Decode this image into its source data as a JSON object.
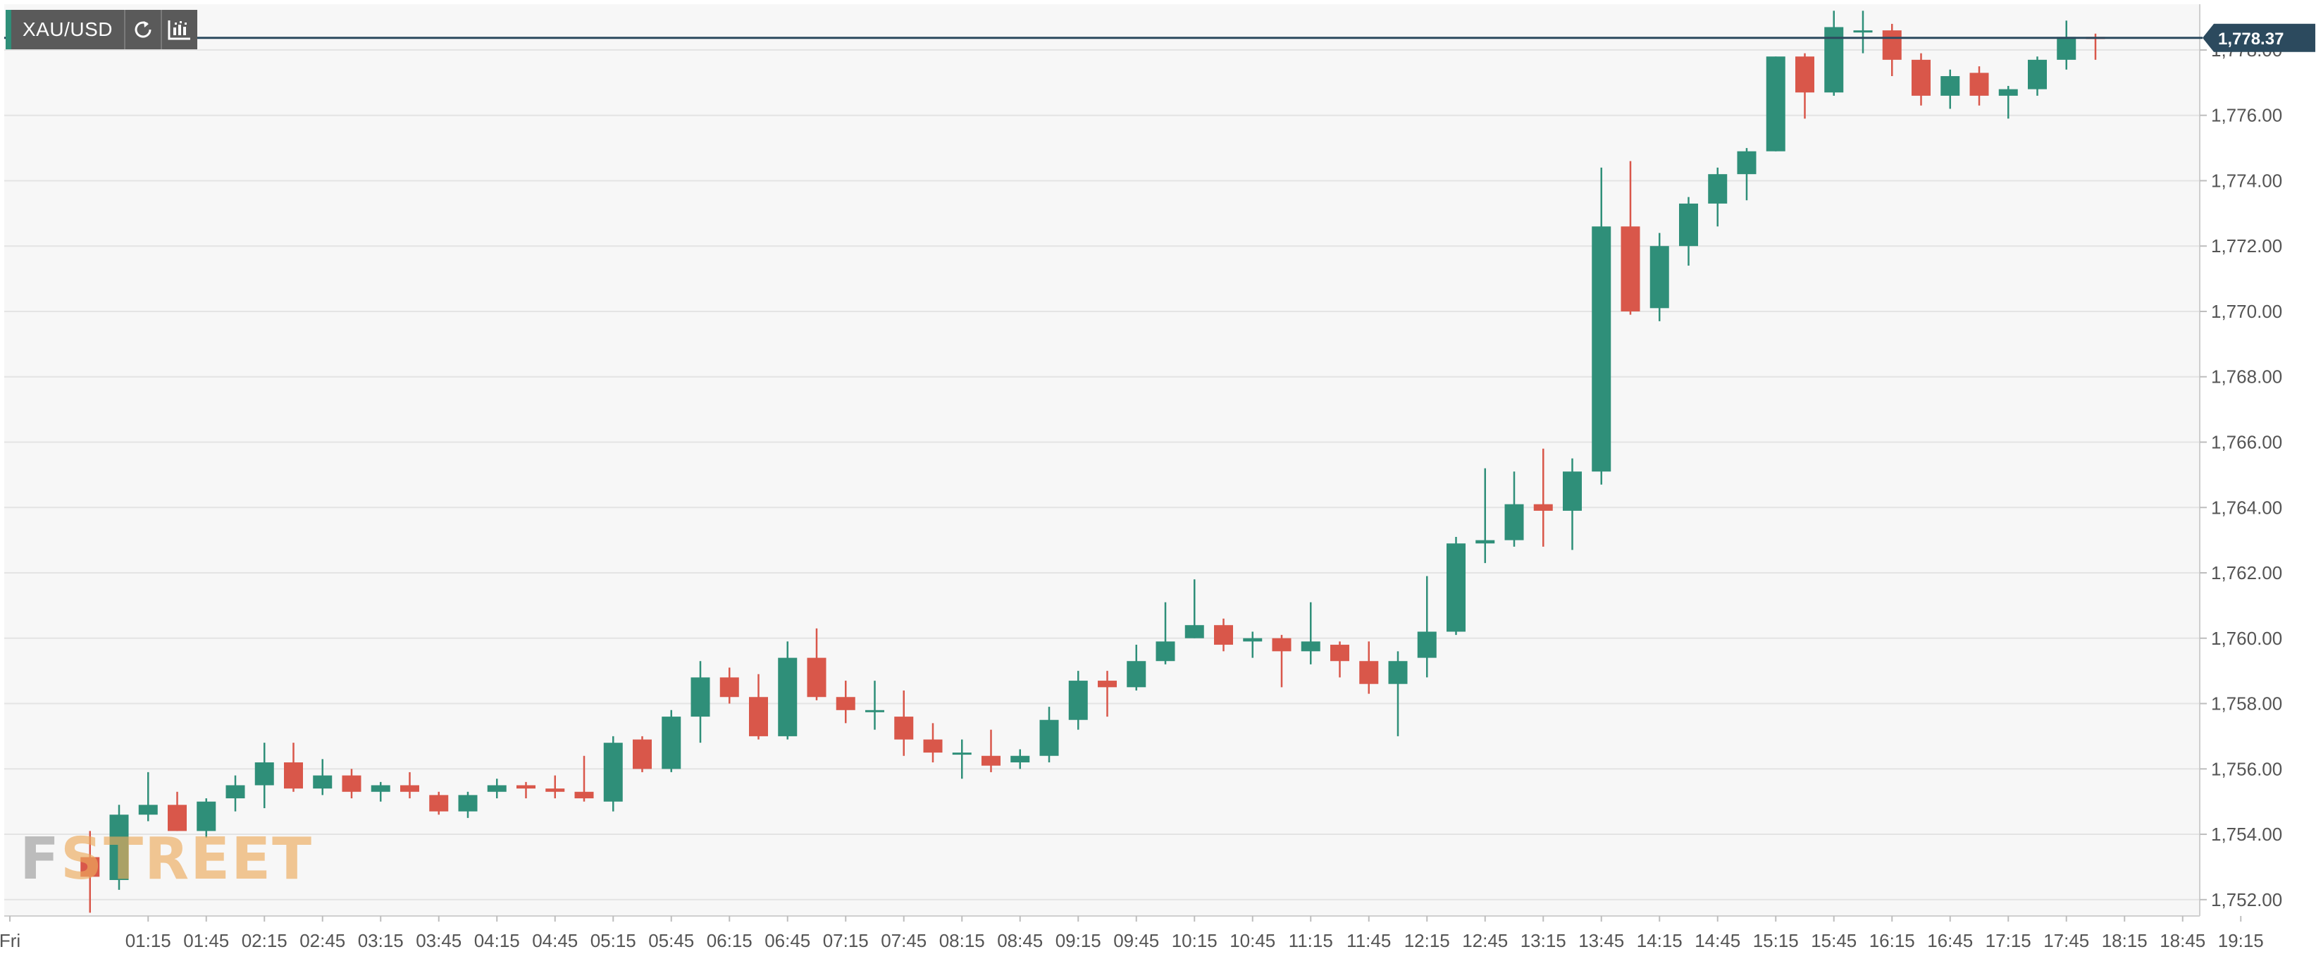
{
  "instrument": "XAU/USD",
  "icons": {
    "refresh": "refresh-icon",
    "chart_type": "candlestick-chart-icon"
  },
  "watermark": {
    "prefix": "F",
    "text": "STREET"
  },
  "colors": {
    "up": "#2f8f79",
    "down": "#d9574a",
    "background": "#f7f7f7",
    "grid": "#e4e4e4",
    "current_line": "#2c4a5e",
    "badge": "#2c4a5e",
    "axis_text": "#555555"
  },
  "chart_data": {
    "type": "candlestick",
    "title": "",
    "xlabel": "",
    "ylabel": "",
    "ylim": [
      1751.5,
      1779.4
    ],
    "grid": true,
    "current_price": 1778.37,
    "current_price_label": "1,778.37",
    "y_ticks": [
      1752,
      1754,
      1756,
      1758,
      1760,
      1762,
      1764,
      1766,
      1768,
      1770,
      1772,
      1774,
      1776,
      1778
    ],
    "y_tick_labels": [
      "1,752.00",
      "1,754.00",
      "1,756.00",
      "1,758.00",
      "1,760.00",
      "1,762.00",
      "1,764.00",
      "1,766.00",
      "1,768.00",
      "1,770.00",
      "1,772.00",
      "1,774.00",
      "1,776.00",
      "1,778.00"
    ],
    "x_tick_labels": [
      "Fri",
      "01:15",
      "01:45",
      "02:15",
      "02:45",
      "03:15",
      "03:45",
      "04:15",
      "04:45",
      "05:15",
      "05:45",
      "06:15",
      "06:45",
      "07:15",
      "07:45",
      "08:15",
      "08:45",
      "09:15",
      "09:45",
      "10:15",
      "10:45",
      "11:15",
      "11:45",
      "12:15",
      "12:45",
      "13:15",
      "13:45",
      "14:15",
      "14:45",
      "15:15",
      "15:45",
      "16:15",
      "16:45",
      "17:15",
      "17:45",
      "18:15",
      "18:45",
      "19:15"
    ],
    "interval_minutes": 15,
    "first_candle_time": "00:45",
    "candles": [
      {
        "time": "00:45",
        "o": 1753.3,
        "h": 1754.1,
        "l": 1751.6,
        "c": 1752.7
      },
      {
        "time": "01:00",
        "o": 1752.6,
        "h": 1754.9,
        "l": 1752.3,
        "c": 1754.6
      },
      {
        "time": "01:15",
        "o": 1754.6,
        "h": 1755.9,
        "l": 1754.4,
        "c": 1754.9
      },
      {
        "time": "01:30",
        "o": 1754.9,
        "h": 1755.3,
        "l": 1754.1,
        "c": 1754.1
      },
      {
        "time": "01:45",
        "o": 1754.1,
        "h": 1755.1,
        "l": 1753.9,
        "c": 1755.0
      },
      {
        "time": "02:00",
        "o": 1755.1,
        "h": 1755.8,
        "l": 1754.7,
        "c": 1755.5
      },
      {
        "time": "02:15",
        "o": 1755.5,
        "h": 1756.8,
        "l": 1754.8,
        "c": 1756.2
      },
      {
        "time": "02:30",
        "o": 1756.2,
        "h": 1756.8,
        "l": 1755.3,
        "c": 1755.4
      },
      {
        "time": "02:45",
        "o": 1755.4,
        "h": 1756.3,
        "l": 1755.2,
        "c": 1755.8
      },
      {
        "time": "03:00",
        "o": 1755.8,
        "h": 1756.0,
        "l": 1755.1,
        "c": 1755.3
      },
      {
        "time": "03:15",
        "o": 1755.3,
        "h": 1755.6,
        "l": 1755.0,
        "c": 1755.5
      },
      {
        "time": "03:30",
        "o": 1755.5,
        "h": 1755.9,
        "l": 1755.1,
        "c": 1755.3
      },
      {
        "time": "03:45",
        "o": 1755.2,
        "h": 1755.3,
        "l": 1754.6,
        "c": 1754.7
      },
      {
        "time": "04:00",
        "o": 1754.7,
        "h": 1755.3,
        "l": 1754.5,
        "c": 1755.2
      },
      {
        "time": "04:15",
        "o": 1755.3,
        "h": 1755.7,
        "l": 1755.1,
        "c": 1755.5
      },
      {
        "time": "04:30",
        "o": 1755.5,
        "h": 1755.6,
        "l": 1755.1,
        "c": 1755.4
      },
      {
        "time": "04:45",
        "o": 1755.4,
        "h": 1755.8,
        "l": 1755.1,
        "c": 1755.3
      },
      {
        "time": "05:00",
        "o": 1755.3,
        "h": 1756.4,
        "l": 1755.0,
        "c": 1755.1
      },
      {
        "time": "05:15",
        "o": 1755.0,
        "h": 1757.0,
        "l": 1754.7,
        "c": 1756.8
      },
      {
        "time": "05:30",
        "o": 1756.9,
        "h": 1757.0,
        "l": 1755.9,
        "c": 1756.0
      },
      {
        "time": "05:45",
        "o": 1756.0,
        "h": 1757.8,
        "l": 1755.9,
        "c": 1757.6
      },
      {
        "time": "06:00",
        "o": 1757.6,
        "h": 1759.3,
        "l": 1756.8,
        "c": 1758.8
      },
      {
        "time": "06:15",
        "o": 1758.8,
        "h": 1759.1,
        "l": 1758.0,
        "c": 1758.2
      },
      {
        "time": "06:30",
        "o": 1758.2,
        "h": 1758.9,
        "l": 1756.9,
        "c": 1757.0
      },
      {
        "time": "06:45",
        "o": 1757.0,
        "h": 1759.9,
        "l": 1756.9,
        "c": 1759.4
      },
      {
        "time": "07:00",
        "o": 1759.4,
        "h": 1760.3,
        "l": 1758.1,
        "c": 1758.2
      },
      {
        "time": "07:15",
        "o": 1758.2,
        "h": 1758.7,
        "l": 1757.4,
        "c": 1757.8
      },
      {
        "time": "07:30",
        "o": 1757.8,
        "h": 1758.7,
        "l": 1757.2,
        "c": 1757.8
      },
      {
        "time": "07:45",
        "o": 1757.6,
        "h": 1758.4,
        "l": 1756.4,
        "c": 1756.9
      },
      {
        "time": "08:00",
        "o": 1756.9,
        "h": 1757.4,
        "l": 1756.2,
        "c": 1756.5
      },
      {
        "time": "08:15",
        "o": 1756.5,
        "h": 1756.9,
        "l": 1755.7,
        "c": 1756.5
      },
      {
        "time": "08:30",
        "o": 1756.4,
        "h": 1757.2,
        "l": 1755.9,
        "c": 1756.1
      },
      {
        "time": "08:45",
        "o": 1756.2,
        "h": 1756.6,
        "l": 1756.0,
        "c": 1756.4
      },
      {
        "time": "09:00",
        "o": 1756.4,
        "h": 1757.9,
        "l": 1756.2,
        "c": 1757.5
      },
      {
        "time": "09:15",
        "o": 1757.5,
        "h": 1759.0,
        "l": 1757.2,
        "c": 1758.7
      },
      {
        "time": "09:30",
        "o": 1758.7,
        "h": 1759.0,
        "l": 1757.6,
        "c": 1758.5
      },
      {
        "time": "09:45",
        "o": 1758.5,
        "h": 1759.8,
        "l": 1758.4,
        "c": 1759.3
      },
      {
        "time": "10:00",
        "o": 1759.3,
        "h": 1761.1,
        "l": 1759.2,
        "c": 1759.9
      },
      {
        "time": "10:15",
        "o": 1760.0,
        "h": 1761.8,
        "l": 1760.0,
        "c": 1760.4
      },
      {
        "time": "10:30",
        "o": 1760.4,
        "h": 1760.6,
        "l": 1759.6,
        "c": 1759.8
      },
      {
        "time": "10:45",
        "o": 1759.9,
        "h": 1760.2,
        "l": 1759.4,
        "c": 1760.0
      },
      {
        "time": "11:00",
        "o": 1760.0,
        "h": 1760.1,
        "l": 1758.5,
        "c": 1759.6
      },
      {
        "time": "11:15",
        "o": 1759.6,
        "h": 1761.1,
        "l": 1759.2,
        "c": 1759.9
      },
      {
        "time": "11:30",
        "o": 1759.8,
        "h": 1759.9,
        "l": 1758.8,
        "c": 1759.3
      },
      {
        "time": "11:45",
        "o": 1759.3,
        "h": 1759.9,
        "l": 1758.3,
        "c": 1758.6
      },
      {
        "time": "12:00",
        "o": 1758.6,
        "h": 1759.6,
        "l": 1757.0,
        "c": 1759.3
      },
      {
        "time": "12:15",
        "o": 1759.4,
        "h": 1761.9,
        "l": 1758.8,
        "c": 1760.2
      },
      {
        "time": "12:30",
        "o": 1760.2,
        "h": 1763.1,
        "l": 1760.1,
        "c": 1762.9
      },
      {
        "time": "12:45",
        "o": 1762.9,
        "h": 1765.2,
        "l": 1762.3,
        "c": 1763.0
      },
      {
        "time": "13:00",
        "o": 1763.0,
        "h": 1765.1,
        "l": 1762.8,
        "c": 1764.1
      },
      {
        "time": "13:15",
        "o": 1764.1,
        "h": 1765.8,
        "l": 1762.8,
        "c": 1763.9
      },
      {
        "time": "13:30",
        "o": 1763.9,
        "h": 1765.5,
        "l": 1762.7,
        "c": 1765.1
      },
      {
        "time": "13:45",
        "o": 1765.1,
        "h": 1774.4,
        "l": 1764.7,
        "c": 1772.6
      },
      {
        "time": "14:00",
        "o": 1772.6,
        "h": 1774.6,
        "l": 1769.9,
        "c": 1770.0
      },
      {
        "time": "14:15",
        "o": 1770.1,
        "h": 1772.4,
        "l": 1769.7,
        "c": 1772.0
      },
      {
        "time": "14:30",
        "o": 1772.0,
        "h": 1773.5,
        "l": 1771.4,
        "c": 1773.3
      },
      {
        "time": "14:45",
        "o": 1773.3,
        "h": 1774.4,
        "l": 1772.6,
        "c": 1774.2
      },
      {
        "time": "15:00",
        "o": 1774.2,
        "h": 1775.0,
        "l": 1773.4,
        "c": 1774.9
      },
      {
        "time": "15:15",
        "o": 1774.9,
        "h": 1777.8,
        "l": 1774.9,
        "c": 1777.8
      },
      {
        "time": "15:30",
        "o": 1777.8,
        "h": 1777.9,
        "l": 1775.9,
        "c": 1776.7
      },
      {
        "time": "15:45",
        "o": 1776.7,
        "h": 1779.2,
        "l": 1776.6,
        "c": 1778.7
      },
      {
        "time": "16:00",
        "o": 1778.6,
        "h": 1779.2,
        "l": 1777.9,
        "c": 1778.6
      },
      {
        "time": "16:15",
        "o": 1778.6,
        "h": 1778.8,
        "l": 1777.2,
        "c": 1777.7
      },
      {
        "time": "16:30",
        "o": 1777.7,
        "h": 1777.9,
        "l": 1776.3,
        "c": 1776.6
      },
      {
        "time": "16:45",
        "o": 1776.6,
        "h": 1777.4,
        "l": 1776.2,
        "c": 1777.2
      },
      {
        "time": "17:00",
        "o": 1777.3,
        "h": 1777.5,
        "l": 1776.3,
        "c": 1776.6
      },
      {
        "time": "17:15",
        "o": 1776.6,
        "h": 1776.9,
        "l": 1775.9,
        "c": 1776.8
      },
      {
        "time": "17:30",
        "o": 1776.8,
        "h": 1777.8,
        "l": 1776.6,
        "c": 1777.7
      },
      {
        "time": "17:45",
        "o": 1777.7,
        "h": 1778.9,
        "l": 1777.4,
        "c": 1778.4
      },
      {
        "time": "18:00",
        "o": 1778.4,
        "h": 1778.5,
        "l": 1777.7,
        "c": 1778.37
      }
    ]
  }
}
